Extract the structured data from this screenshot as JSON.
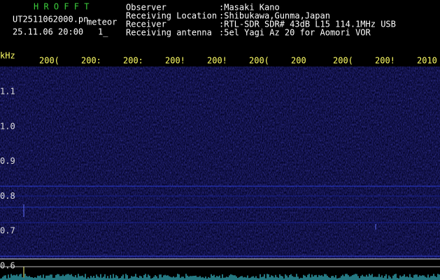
{
  "header": {
    "program": "H R O F F T",
    "file": "UT2511062000.pn",
    "tag": "meteor",
    "datetime": "25.11.06 20:00",
    "mark": "1_",
    "fields": [
      {
        "label": "Observer",
        "value": ":Masaki Kano"
      },
      {
        "label": "Receiving Location",
        "value": ":Shibukawa,Gunma,Japan"
      },
      {
        "label": "Receiver",
        "value": ":RTL-SDR SDR# 43dB L15 114.1MHz USB"
      },
      {
        "label": "Receiving antenna",
        "value": ":5el Yagi Az 20 for Aomori VOR"
      }
    ]
  },
  "axis": {
    "unit": "kHz",
    "time_labels": [
      "200(",
      "200:",
      "200:",
      "200!",
      "200!",
      "200(",
      "200",
      "200(",
      "200!",
      "2010"
    ],
    "freq_labels": [
      "1.1",
      "1.0",
      "0.9",
      "0.8",
      "0.7",
      "0.6"
    ]
  }
}
